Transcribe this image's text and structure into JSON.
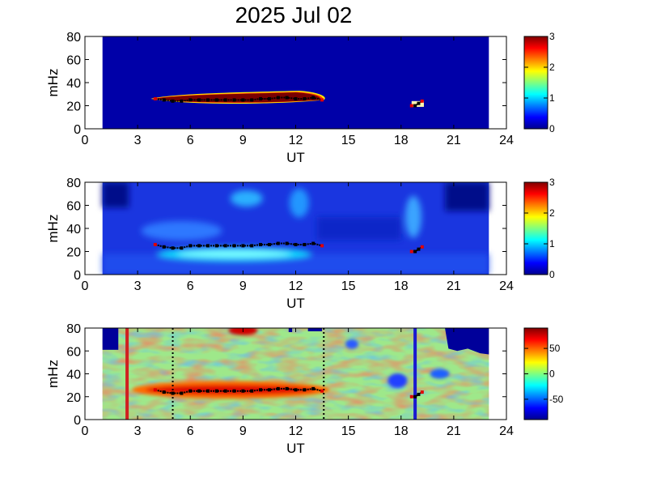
{
  "title": "2025 Jul 02",
  "chart_data": [
    {
      "type": "heatmap",
      "panel": "top",
      "xlabel": "UT",
      "ylabel": "mHz",
      "xlim": [
        0,
        24
      ],
      "ylim": [
        0,
        80
      ],
      "xticks": [
        "0",
        "3",
        "6",
        "9",
        "12",
        "15",
        "18",
        "21",
        "24"
      ],
      "yticks": [
        "0",
        "20",
        "40",
        "60",
        "80"
      ],
      "data_time_range": [
        1,
        23
      ],
      "colorbar": {
        "min": 0,
        "max": 3,
        "ticks": [
          "0",
          "1",
          "2",
          "3"
        ]
      },
      "feature": "strong band 3.8–13.8 UT centred ~26 mHz; small patch ~18.7–19.3 UT at ~22 mHz",
      "tracked_frequency": {
        "x": [
          4.0,
          4.5,
          5.0,
          5.5,
          6.0,
          6.5,
          7.0,
          7.5,
          8.0,
          8.5,
          9.0,
          9.5,
          10.0,
          10.5,
          11.0,
          11.5,
          12.0,
          12.5,
          13.0,
          13.5
        ],
        "y": [
          26,
          25,
          24,
          24,
          25,
          25,
          25,
          25,
          25,
          25,
          25,
          25,
          26,
          26,
          27,
          27,
          26,
          26,
          27,
          25
        ]
      },
      "tracked_frequency_2": {
        "x": [
          18.6,
          18.8,
          19.0,
          19.2
        ],
        "y": [
          20,
          20,
          22,
          24
        ]
      }
    },
    {
      "type": "heatmap",
      "panel": "middle",
      "xlabel": "UT",
      "ylabel": "mHz",
      "xlim": [
        0,
        24
      ],
      "ylim": [
        0,
        80
      ],
      "xticks": [
        "0",
        "3",
        "6",
        "9",
        "12",
        "15",
        "18",
        "21",
        "24"
      ],
      "yticks": [
        "0",
        "20",
        "40",
        "60",
        "80"
      ],
      "data_time_range": [
        1,
        23
      ],
      "colorbar": {
        "min": 0,
        "max": 3,
        "ticks": [
          "0",
          "1",
          "2",
          "3"
        ]
      },
      "tracked_frequency": {
        "x": [
          4.0,
          4.5,
          5.0,
          5.5,
          6.0,
          6.5,
          7.0,
          7.5,
          8.0,
          8.5,
          9.0,
          9.5,
          10.0,
          10.5,
          11.0,
          11.5,
          12.0,
          12.5,
          13.0,
          13.5
        ],
        "y": [
          26,
          24,
          23,
          23,
          25,
          25,
          25,
          25,
          25,
          25,
          25,
          25,
          26,
          26,
          27,
          27,
          26,
          26,
          27,
          25
        ]
      },
      "tracked_frequency_2": {
        "x": [
          18.6,
          18.8,
          19.0,
          19.2
        ],
        "y": [
          20,
          20,
          22,
          24
        ]
      }
    },
    {
      "type": "heatmap",
      "panel": "bottom",
      "xlabel": "UT",
      "ylabel": "mHz",
      "xlim": [
        0,
        24
      ],
      "ylim": [
        0,
        80
      ],
      "xticks": [
        "0",
        "3",
        "6",
        "9",
        "12",
        "15",
        "18",
        "21",
        "24"
      ],
      "yticks": [
        "0",
        "20",
        "40",
        "60",
        "80"
      ],
      "data_time_range": [
        1,
        23
      ],
      "colorbar": {
        "min": -90,
        "max": 90,
        "ticks": [
          "50",
          "0",
          "-50"
        ]
      },
      "vertical_markers": [
        {
          "x": 2.4,
          "style": "solid",
          "color": "#d02020"
        },
        {
          "x": 5.0,
          "style": "dotted",
          "color": "#000000"
        },
        {
          "x": 13.6,
          "style": "dotted",
          "color": "#000000"
        },
        {
          "x": 18.8,
          "style": "solid",
          "color": "#1a1ad0"
        }
      ],
      "tracked_frequency": {
        "x": [
          4.0,
          4.5,
          5.0,
          5.5,
          6.0,
          6.5,
          7.0,
          7.5,
          8.0,
          8.5,
          9.0,
          9.5,
          10.0,
          10.5,
          11.0,
          11.5,
          12.0,
          12.5,
          13.0,
          13.5
        ],
        "y": [
          26,
          24,
          23,
          23,
          25,
          25,
          25,
          25,
          25,
          25,
          25,
          25,
          26,
          26,
          27,
          27,
          26,
          26,
          27,
          25
        ]
      },
      "tracked_frequency_2": {
        "x": [
          18.6,
          18.8,
          19.0,
          19.2
        ],
        "y": [
          20,
          20,
          22,
          24
        ]
      }
    }
  ]
}
